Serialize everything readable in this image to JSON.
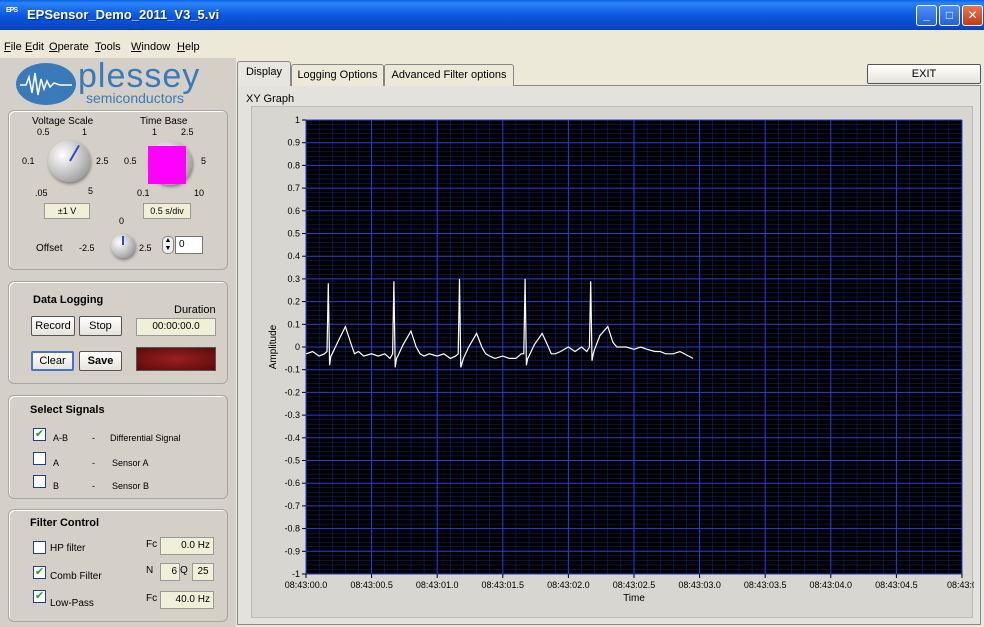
{
  "window": {
    "title": "EPSensor_Demo_2011_V3_5.vi",
    "icon_text": "EPS",
    "controls": [
      "minimize-icon",
      "maximize-icon",
      "close-icon"
    ]
  },
  "menu": [
    "File",
    "Edit",
    "Operate",
    "Tools",
    "Window",
    "Help"
  ],
  "logo": {
    "brand": "plessey",
    "sub": "semiconductors"
  },
  "scope": {
    "voltage_scale": {
      "label": "Voltage Scale",
      "ticks": [
        "0.5",
        "1",
        "0.1",
        "2.5",
        ".05",
        "5"
      ],
      "value": "±1 V"
    },
    "time_base": {
      "label": "Time Base",
      "ticks": [
        "1",
        "2.5",
        "0.5",
        "5",
        "0.1",
        "10"
      ],
      "value": "0.5 s/div",
      "color": "#ff00ff"
    },
    "offset": {
      "label": "Offset",
      "ticks": [
        "0",
        "-2.5",
        "2.5"
      ],
      "value": "0"
    }
  },
  "data_logging": {
    "title": "Data Logging",
    "duration_label": "Duration",
    "duration_value": "00:00:00.0",
    "record": "Record",
    "stop": "Stop",
    "clear": "Clear",
    "save": "Save"
  },
  "select_signals": {
    "title": "Select Signals",
    "items": [
      {
        "code": "A-B",
        "dash": "-",
        "desc": "Differential Signal",
        "checked": true
      },
      {
        "code": "A",
        "dash": "-",
        "desc": "Sensor A",
        "checked": false
      },
      {
        "code": "B",
        "dash": "-",
        "desc": "Sensor B",
        "checked": false
      }
    ]
  },
  "filter_control": {
    "title": "Filter Control",
    "hp": {
      "label": "HP filter",
      "checked": false,
      "fc_label": "Fc",
      "fc_value": "0.0 Hz"
    },
    "comb": {
      "label": "Comb Filter",
      "checked": true,
      "n_label": "N",
      "n_value": "6",
      "q_label": "Q",
      "q_value": "25"
    },
    "lowpass": {
      "label": "Low-Pass",
      "checked": true,
      "fc_label": "Fc",
      "fc_value": "40.0 Hz"
    }
  },
  "tabs": [
    {
      "label": "Display",
      "active": true
    },
    {
      "label": "Logging Options",
      "active": false
    },
    {
      "label": "Advanced Filter options",
      "active": false
    }
  ],
  "exit_button": "EXIT",
  "graph_label": "XY Graph",
  "chart_data": {
    "type": "line",
    "xlabel": "Time",
    "ylabel": "Amplitude",
    "ylim": [
      -1,
      1
    ],
    "y_ticks": [
      "1",
      "0.9",
      "0.8",
      "0.7",
      "0.6",
      "0.5",
      "0.4",
      "0.3",
      "0.2",
      "0.1",
      "0",
      "-0.1",
      "-0.2",
      "-0.3",
      "-0.4",
      "-0.5",
      "-0.6",
      "-0.7",
      "-0.8",
      "-0.9",
      "-1"
    ],
    "x_ticks": [
      "08:43:00.0",
      "08:43:00.5",
      "08:43:01.0",
      "08:43:01.5",
      "08:43:02.0",
      "08:43:02.5",
      "08:43:03.0",
      "08:43:03.5",
      "08:43:04.0",
      "08:43:04.5",
      "08:43:0"
    ],
    "xlim": [
      "08:43:00.0",
      "08:43:05.0"
    ],
    "grid": true,
    "background": "#000000",
    "grid_color": "#2a3fd9",
    "line_color": "#ffffff",
    "series": [
      {
        "x": [
          "08:43:00.00",
          "08:43:00.05",
          "08:43:00.10",
          "08:43:00.14",
          "08:43:00.16",
          "08:43:00.17",
          "08:43:00.18",
          "08:43:00.19",
          "08:43:00.20",
          "08:43:00.24",
          "08:43:00.30",
          "08:43:00.34",
          "08:43:00.37",
          "08:43:00.40",
          "08:43:00.44",
          "08:43:00.50",
          "08:43:00.55",
          "08:43:00.60",
          "08:43:00.64",
          "08:43:00.66",
          "08:43:00.67",
          "08:43:00.68",
          "08:43:00.69",
          "08:43:00.70",
          "08:43:00.74",
          "08:43:00.80",
          "08:43:00.84",
          "08:43:00.87",
          "08:43:00.90",
          "08:43:00.94",
          "08:43:01.00",
          "08:43:01.05",
          "08:43:01.10",
          "08:43:01.14",
          "08:43:01.16",
          "08:43:01.17",
          "08:43:01.18",
          "08:43:01.19",
          "08:43:01.20",
          "08:43:01.24",
          "08:43:01.30",
          "08:43:01.34",
          "08:43:01.37",
          "08:43:01.40",
          "08:43:01.44",
          "08:43:01.50",
          "08:43:01.55",
          "08:43:01.60",
          "08:43:01.64",
          "08:43:01.66",
          "08:43:01.67",
          "08:43:01.68",
          "08:43:01.69",
          "08:43:01.70",
          "08:43:01.74",
          "08:43:01.80",
          "08:43:01.84",
          "08:43:01.87",
          "08:43:01.90",
          "08:43:01.94",
          "08:43:02.00",
          "08:43:02.05",
          "08:43:02.10",
          "08:43:02.14",
          "08:43:02.16",
          "08:43:02.17",
          "08:43:02.18",
          "08:43:02.19",
          "08:43:02.20",
          "08:43:02.24",
          "08:43:02.30",
          "08:43:02.34",
          "08:43:02.37",
          "08:43:02.40",
          "08:43:02.44",
          "08:43:02.50",
          "08:43:02.55",
          "08:43:02.60",
          "08:43:02.66",
          "08:43:02.70",
          "08:43:02.74",
          "08:43:02.80",
          "08:43:02.85",
          "08:43:02.95"
        ],
        "y": [
          -0.03,
          -0.02,
          -0.04,
          -0.03,
          -0.02,
          0.28,
          -0.08,
          -0.04,
          -0.03,
          0.02,
          0.09,
          0.02,
          -0.03,
          -0.02,
          -0.04,
          -0.03,
          -0.04,
          -0.03,
          -0.05,
          -0.03,
          0.29,
          -0.09,
          -0.05,
          -0.04,
          0.01,
          0.07,
          0.0,
          -0.03,
          -0.04,
          -0.03,
          -0.04,
          -0.03,
          -0.05,
          -0.04,
          -0.03,
          0.3,
          -0.09,
          -0.07,
          -0.05,
          0.0,
          0.06,
          0.0,
          -0.03,
          -0.04,
          -0.05,
          -0.04,
          -0.05,
          -0.05,
          -0.03,
          -0.03,
          0.3,
          -0.08,
          -0.05,
          -0.04,
          0.01,
          0.06,
          0.01,
          -0.03,
          -0.03,
          -0.02,
          0.0,
          -0.02,
          0.0,
          -0.02,
          0.0,
          0.29,
          -0.06,
          -0.03,
          -0.01,
          0.05,
          0.09,
          0.02,
          0.0,
          0.0,
          0.0,
          -0.01,
          0.0,
          -0.01,
          -0.02,
          -0.02,
          -0.03,
          -0.03,
          -0.02,
          -0.05
        ]
      }
    ]
  }
}
